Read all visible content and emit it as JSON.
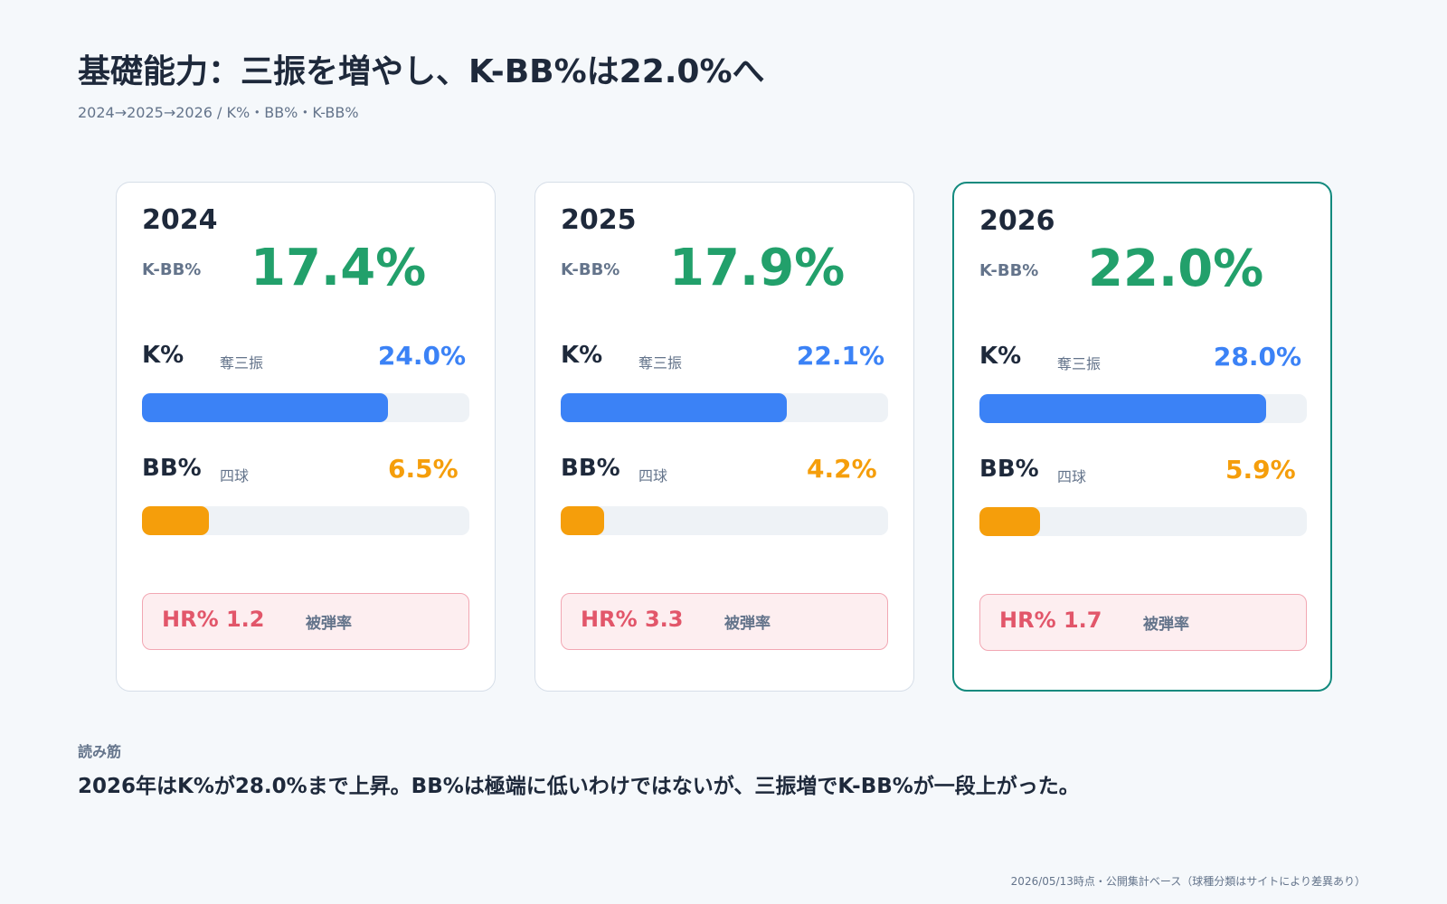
{
  "header": {
    "title": "基礎能力：三振を増やし、K-BB%は22.0%へ",
    "subtitle": "2024→2025→2026 / K%・BB%・K-BB%"
  },
  "chart_data": {
    "type": "bar",
    "categories": [
      "2024",
      "2025",
      "2026"
    ],
    "highlight": "2026",
    "series": [
      {
        "name": "K%",
        "values": [
          24.0,
          22.1,
          28.0
        ]
      },
      {
        "name": "BB%",
        "values": [
          6.5,
          4.2,
          5.9
        ]
      },
      {
        "name": "K-BB%",
        "values": [
          17.4,
          17.9,
          22.0
        ]
      },
      {
        "name": "HR%",
        "values": [
          1.2,
          3.3,
          1.7
        ]
      }
    ],
    "scale_max": 32
  },
  "cards": [
    {
      "year": "2024",
      "kbb_label": "K-BB%",
      "kbb_value": "17.4%",
      "k_label": "K%",
      "k_sub": "奪三振",
      "k_value": "24.0%",
      "k_num": 24.0,
      "bb_label": "BB%",
      "bb_sub": "四球",
      "bb_value": "6.5%",
      "bb_num": 6.5,
      "hr_value": "HR% 1.2",
      "hr_label": "被弾率"
    },
    {
      "year": "2025",
      "kbb_label": "K-BB%",
      "kbb_value": "17.9%",
      "k_label": "K%",
      "k_sub": "奪三振",
      "k_value": "22.1%",
      "k_num": 22.1,
      "bb_label": "BB%",
      "bb_sub": "四球",
      "bb_value": "4.2%",
      "bb_num": 4.2,
      "hr_value": "HR% 3.3",
      "hr_label": "被弾率"
    },
    {
      "year": "2026",
      "kbb_label": "K-BB%",
      "kbb_value": "22.0%",
      "k_label": "K%",
      "k_sub": "奪三振",
      "k_value": "28.0%",
      "k_num": 28.0,
      "bb_label": "BB%",
      "bb_sub": "四球",
      "bb_value": "5.9%",
      "bb_num": 5.9,
      "hr_value": "HR% 1.7",
      "hr_label": "被弾率"
    }
  ],
  "note": {
    "label": "読み筋",
    "text": "2026年はK%が28.0%まで上昇。BB%は極端に低いわけではないが、三振増でK-BB%が一段上がった。"
  },
  "footer": "2026/05/13時点・公開集計ベース（球種分類はサイトにより差異あり）",
  "colors": {
    "k_bar": "#3b82f6",
    "bb_bar": "#f59e0b",
    "kbb": "#22a06b",
    "hr": "#e2566a",
    "highlight_border": "#138a7e"
  }
}
